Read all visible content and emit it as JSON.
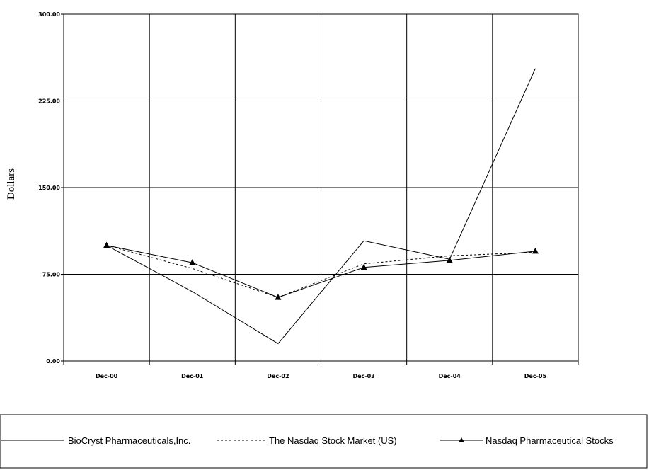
{
  "chart_data": {
    "type": "line",
    "ylabel": "Dollars",
    "ylim": [
      0,
      300
    ],
    "yticks": [
      "0.00",
      "75.00",
      "150.00",
      "225.00",
      "300.00"
    ],
    "ytick_values": [
      0,
      75,
      150,
      225,
      300
    ],
    "categories": [
      "Dec-00",
      "Dec-01",
      "Dec-02",
      "Dec-03",
      "Dec-04",
      "Dec-05"
    ],
    "grid": true,
    "legend_position": "bottom",
    "series": [
      {
        "name": "BioCryst Pharmaceuticals,Inc.",
        "style": "solid",
        "marker": "none",
        "values": [
          100,
          60,
          15,
          104,
          88,
          253
        ]
      },
      {
        "name": "The Nasdaq Stock Market (US)",
        "style": "dotted",
        "marker": "none",
        "values": [
          100,
          80,
          55,
          84,
          91,
          94
        ]
      },
      {
        "name": "Nasdaq Pharmaceutical Stocks",
        "style": "solid",
        "marker": "triangle",
        "values": [
          100,
          85,
          55,
          81,
          87,
          95
        ]
      }
    ]
  }
}
